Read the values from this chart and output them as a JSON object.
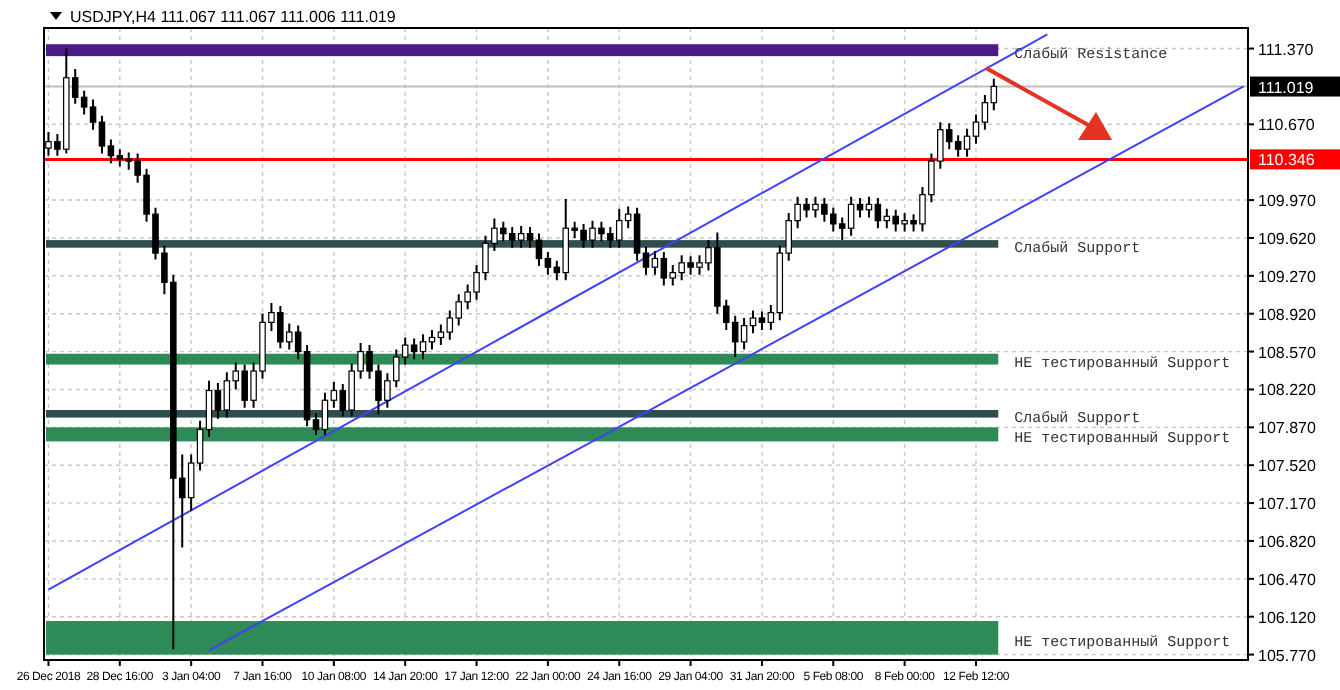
{
  "chart_data": {
    "type": "candlestick",
    "title": "USDJPY,H4 111.067 111.067 111.006 111.019",
    "categories": [
      "26 Dec 2018",
      null,
      null,
      null,
      null,
      null,
      null,
      null,
      "28 Dec 16:00",
      null,
      null,
      null,
      null,
      null,
      null,
      null,
      "3 Jan 04:00",
      null,
      null,
      null,
      null,
      null,
      null,
      null,
      "7 Jan 16:00",
      null,
      null,
      null,
      null,
      null,
      null,
      null,
      "10 Jan 08:00",
      null,
      null,
      null,
      null,
      null,
      null,
      null,
      "14 Jan 20:00",
      null,
      null,
      null,
      null,
      null,
      null,
      null,
      "17 Jan 12:00",
      null,
      null,
      null,
      null,
      null,
      null,
      null,
      "22 Jan 00:00",
      null,
      null,
      null,
      null,
      null,
      null,
      null,
      "24 Jan 16:00",
      null,
      null,
      null,
      null,
      null,
      null,
      null,
      "29 Jan 04:00",
      null,
      null,
      null,
      null,
      null,
      null,
      null,
      "31 Jan 20:00",
      null,
      null,
      null,
      null,
      null,
      null,
      null,
      "5 Feb 08:00",
      null,
      null,
      null,
      null,
      null,
      null,
      null,
      "8 Feb 00:00",
      null,
      null,
      null,
      null,
      null,
      null,
      null,
      "12 Feb 12:00",
      null,
      null,
      null,
      null,
      null,
      null,
      null,
      null,
      null,
      null,
      null,
      null,
      null,
      null,
      null,
      null,
      null,
      null,
      null,
      null,
      null,
      null,
      null,
      null,
      null,
      null,
      null,
      null,
      null,
      null
    ],
    "ohlc": [
      [
        110.45,
        110.6,
        110.38,
        110.51
      ],
      [
        110.51,
        110.58,
        110.38,
        110.44
      ],
      [
        110.44,
        111.37,
        110.4,
        111.1
      ],
      [
        111.1,
        111.18,
        110.86,
        110.92
      ],
      [
        110.92,
        110.98,
        110.76,
        110.83
      ],
      [
        110.83,
        110.9,
        110.62,
        110.69
      ],
      [
        110.69,
        110.75,
        110.4,
        110.47
      ],
      [
        110.47,
        110.53,
        110.31,
        110.38
      ],
      [
        110.38,
        110.44,
        110.28,
        110.35
      ],
      [
        110.35,
        110.41,
        110.25,
        110.33
      ],
      [
        110.33,
        110.4,
        110.13,
        110.2
      ],
      [
        110.2,
        110.26,
        109.77,
        109.84
      ],
      [
        109.84,
        109.9,
        109.42,
        109.48
      ],
      [
        109.48,
        109.55,
        109.1,
        109.21
      ],
      [
        109.21,
        109.28,
        105.82,
        107.4
      ],
      [
        107.4,
        107.62,
        106.76,
        107.22
      ],
      [
        107.22,
        107.62,
        107.1,
        107.54
      ],
      [
        107.54,
        107.93,
        107.47,
        107.85
      ],
      [
        107.85,
        108.3,
        107.78,
        108.21
      ],
      [
        108.21,
        108.28,
        107.95,
        108.03
      ],
      [
        108.03,
        108.38,
        107.96,
        108.3
      ],
      [
        108.3,
        108.47,
        108.22,
        108.39
      ],
      [
        108.39,
        108.45,
        108.05,
        108.12
      ],
      [
        108.12,
        108.47,
        108.05,
        108.39
      ],
      [
        108.39,
        108.92,
        108.32,
        108.84
      ],
      [
        108.84,
        109.02,
        108.76,
        108.93
      ],
      [
        108.93,
        108.99,
        108.6,
        108.66
      ],
      [
        108.66,
        108.83,
        108.59,
        108.75
      ],
      [
        108.75,
        108.81,
        108.5,
        108.57
      ],
      [
        108.57,
        108.63,
        107.88,
        107.94
      ],
      [
        107.94,
        108.0,
        107.8,
        107.85
      ],
      [
        107.85,
        108.19,
        107.8,
        108.12
      ],
      [
        108.12,
        108.29,
        108.05,
        108.21
      ],
      [
        108.21,
        108.27,
        107.97,
        108.03
      ],
      [
        108.03,
        108.46,
        107.97,
        108.39
      ],
      [
        108.39,
        108.65,
        108.32,
        108.57
      ],
      [
        108.57,
        108.63,
        108.32,
        108.39
      ],
      [
        108.39,
        108.45,
        107.99,
        108.12
      ],
      [
        108.12,
        108.37,
        108.05,
        108.3
      ],
      [
        108.3,
        108.59,
        108.24,
        108.52
      ],
      [
        108.52,
        108.7,
        108.45,
        108.63
      ],
      [
        108.63,
        108.69,
        108.5,
        108.57
      ],
      [
        108.57,
        108.73,
        108.5,
        108.66
      ],
      [
        108.66,
        108.77,
        108.59,
        108.7
      ],
      [
        108.7,
        108.82,
        108.63,
        108.75
      ],
      [
        108.75,
        108.95,
        108.68,
        108.88
      ],
      [
        108.88,
        109.1,
        108.81,
        109.03
      ],
      [
        109.03,
        109.19,
        108.96,
        109.12
      ],
      [
        109.12,
        109.37,
        109.05,
        109.3
      ],
      [
        109.3,
        109.64,
        109.23,
        109.57
      ],
      [
        109.57,
        109.8,
        109.5,
        109.71
      ],
      [
        109.71,
        109.77,
        109.59,
        109.66
      ],
      [
        109.66,
        109.72,
        109.53,
        109.6
      ],
      [
        109.6,
        109.73,
        109.53,
        109.66
      ],
      [
        109.66,
        109.72,
        109.53,
        109.6
      ],
      [
        109.6,
        109.66,
        109.36,
        109.43
      ],
      [
        109.43,
        109.49,
        109.28,
        109.35
      ],
      [
        109.35,
        109.41,
        109.23,
        109.3
      ],
      [
        109.3,
        109.98,
        109.23,
        109.71
      ],
      [
        109.71,
        109.77,
        109.62,
        109.69
      ],
      [
        109.69,
        109.75,
        109.53,
        109.6
      ],
      [
        109.6,
        109.78,
        109.53,
        109.71
      ],
      [
        109.71,
        109.77,
        109.59,
        109.66
      ],
      [
        109.66,
        109.72,
        109.53,
        109.6
      ],
      [
        109.6,
        109.89,
        109.53,
        109.78
      ],
      [
        109.78,
        109.91,
        109.71,
        109.84
      ],
      [
        109.84,
        109.9,
        109.41,
        109.48
      ],
      [
        109.48,
        109.54,
        109.28,
        109.35
      ],
      [
        109.35,
        109.5,
        109.28,
        109.43
      ],
      [
        109.43,
        109.49,
        109.18,
        109.25
      ],
      [
        109.25,
        109.37,
        109.18,
        109.3
      ],
      [
        109.3,
        109.46,
        109.23,
        109.39
      ],
      [
        109.39,
        109.45,
        109.28,
        109.35
      ],
      [
        109.35,
        109.46,
        109.28,
        109.39
      ],
      [
        109.39,
        109.6,
        109.32,
        109.53
      ],
      [
        109.53,
        109.67,
        108.92,
        108.99
      ],
      [
        108.99,
        109.05,
        108.77,
        108.84
      ],
      [
        108.84,
        108.9,
        108.52,
        108.66
      ],
      [
        108.66,
        108.88,
        108.59,
        108.81
      ],
      [
        108.81,
        108.95,
        108.74,
        108.88
      ],
      [
        108.88,
        108.94,
        108.77,
        108.84
      ],
      [
        108.84,
        109.0,
        108.77,
        108.93
      ],
      [
        108.93,
        109.55,
        108.86,
        109.48
      ],
      [
        109.48,
        109.85,
        109.41,
        109.78
      ],
      [
        109.78,
        110.0,
        109.71,
        109.93
      ],
      [
        109.93,
        109.99,
        109.81,
        109.88
      ],
      [
        109.88,
        110.0,
        109.81,
        109.93
      ],
      [
        109.93,
        109.99,
        109.77,
        109.84
      ],
      [
        109.84,
        109.9,
        109.68,
        109.75
      ],
      [
        109.75,
        109.81,
        109.6,
        109.71
      ],
      [
        109.71,
        110.0,
        109.64,
        109.93
      ],
      [
        109.93,
        109.99,
        109.81,
        109.88
      ],
      [
        109.88,
        110.0,
        109.81,
        109.93
      ],
      [
        109.93,
        109.99,
        109.71,
        109.78
      ],
      [
        109.78,
        109.89,
        109.71,
        109.82
      ],
      [
        109.82,
        109.88,
        109.68,
        109.75
      ],
      [
        109.75,
        109.85,
        109.68,
        109.78
      ],
      [
        109.78,
        109.84,
        109.68,
        109.75
      ],
      [
        109.75,
        110.09,
        109.68,
        110.02
      ],
      [
        110.02,
        110.4,
        109.95,
        110.33
      ],
      [
        110.33,
        110.69,
        110.26,
        110.62
      ],
      [
        110.62,
        110.68,
        110.44,
        110.51
      ],
      [
        110.51,
        110.57,
        110.37,
        110.44
      ],
      [
        110.44,
        110.63,
        110.37,
        110.56
      ],
      [
        110.56,
        110.76,
        110.49,
        110.69
      ],
      [
        110.69,
        110.94,
        110.62,
        110.87
      ],
      [
        110.87,
        111.09,
        110.8,
        111.02
      ],
      null,
      null,
      null,
      null,
      null,
      null,
      null,
      null,
      null,
      null,
      null,
      null,
      null,
      null,
      null,
      null,
      null,
      null,
      null,
      null,
      null,
      null,
      null,
      null,
      null,
      null,
      null,
      null
    ],
    "series": [
      {
        "type": "line",
        "color": "#4040ff",
        "values": [
          106.37,
          null,
          null,
          null,
          null,
          null,
          null,
          null,
          null,
          null,
          null,
          null,
          null,
          null,
          null,
          null,
          null,
          null,
          null,
          null,
          null,
          null,
          null,
          null,
          null,
          null,
          null,
          null,
          null,
          null,
          null,
          null,
          null,
          null,
          null,
          null,
          null,
          null,
          null,
          null,
          null,
          null,
          null,
          null,
          null,
          null,
          null,
          null,
          null,
          null,
          null,
          null,
          null,
          null,
          null,
          null,
          null,
          null,
          null,
          null,
          null,
          null,
          null,
          null,
          null,
          null,
          null,
          null,
          null,
          null,
          null,
          null,
          null,
          null,
          null,
          null,
          null,
          null,
          null,
          null,
          null,
          null,
          null,
          null,
          null,
          null,
          null,
          null,
          null,
          null,
          null,
          null,
          null,
          null,
          null,
          null,
          null,
          null,
          null,
          null,
          null,
          null,
          null,
          null,
          null,
          null,
          null,
          null,
          null,
          null,
          null,
          null,
          111.5,
          null,
          null,
          null,
          null,
          null,
          null,
          null,
          null,
          null,
          null,
          null,
          null,
          null,
          null,
          null,
          null,
          null,
          null,
          null,
          null,
          null,
          null
        ]
      },
      {
        "type": "line",
        "color": "#4040ff",
        "values": [
          null,
          null,
          null,
          null,
          null,
          null,
          null,
          null,
          null,
          null,
          null,
          null,
          null,
          null,
          null,
          null,
          null,
          null,
          105.81,
          null,
          null,
          null,
          null,
          null,
          null,
          null,
          null,
          null,
          null,
          null,
          null,
          null,
          null,
          null,
          null,
          null,
          null,
          null,
          null,
          null,
          null,
          null,
          null,
          null,
          null,
          null,
          null,
          null,
          null,
          null,
          null,
          null,
          null,
          null,
          null,
          null,
          null,
          null,
          null,
          null,
          null,
          null,
          null,
          null,
          null,
          null,
          null,
          null,
          null,
          null,
          null,
          null,
          null,
          null,
          null,
          null,
          null,
          null,
          null,
          null,
          null,
          null,
          null,
          null,
          null,
          null,
          null,
          null,
          null,
          null,
          null,
          null,
          null,
          null,
          null,
          null,
          null,
          null,
          null,
          null,
          null,
          null,
          null,
          null,
          null,
          null,
          null,
          null,
          null,
          null,
          null,
          null,
          null,
          null,
          null,
          null,
          null,
          null,
          null,
          null,
          null,
          null,
          null,
          null,
          null,
          null,
          null,
          null,
          null,
          null,
          null,
          null,
          null,
          null,
          111.02
        ]
      }
    ],
    "ylim": [
      105.72,
      111.56
    ],
    "yticks": [
      {
        "value": 105.77,
        "label": "105.770"
      },
      {
        "value": 106.12,
        "label": "106.120"
      },
      {
        "value": 106.47,
        "label": "106.470"
      },
      {
        "value": 106.82,
        "label": "106.820"
      },
      {
        "value": 107.17,
        "label": "107.170"
      },
      {
        "value": 107.52,
        "label": "107.520"
      },
      {
        "value": 107.87,
        "label": "107.870"
      },
      {
        "value": 108.22,
        "label": "108.220"
      },
      {
        "value": 108.57,
        "label": "108.570"
      },
      {
        "value": 108.92,
        "label": "108.920"
      },
      {
        "value": 109.27,
        "label": "109.270"
      },
      {
        "value": 109.62,
        "label": "109.620"
      },
      {
        "value": 109.97,
        "label": "109.970"
      },
      {
        "value": 110.67,
        "label": "110.670"
      },
      {
        "value": 111.37,
        "label": "111.370"
      }
    ],
    "grid": true,
    "ref_lines": [
      {
        "axis": "y",
        "value": 110.346,
        "label": "110.346",
        "color": "#ff0000"
      },
      {
        "axis": "y",
        "value": 111.019,
        "label": "111.019",
        "color": "#c0c0c0"
      }
    ],
    "bands": [
      {
        "axis": "y",
        "from": 111.3,
        "to": 111.41,
        "label": "Слабый Resistance",
        "color": "#4b1a86"
      },
      {
        "axis": "y",
        "from": 109.53,
        "to": 109.6,
        "label": "Слабый Support",
        "color": "#2f4f4f"
      },
      {
        "axis": "y",
        "from": 108.45,
        "to": 108.55,
        "label": "НЕ тестированный Support",
        "color": "#2e8b57"
      },
      {
        "axis": "y",
        "from": 107.96,
        "to": 108.03,
        "label": "Слабый Support",
        "color": "#2f4f4f"
      },
      {
        "axis": "y",
        "from": 107.74,
        "to": 107.87,
        "label": "НЕ тестированный Support",
        "color": "#2e8b57"
      },
      {
        "axis": "y",
        "from": 105.77,
        "to": 106.08,
        "label": "НЕ тестированный Support",
        "color": "#2e8b57"
      }
    ]
  }
}
